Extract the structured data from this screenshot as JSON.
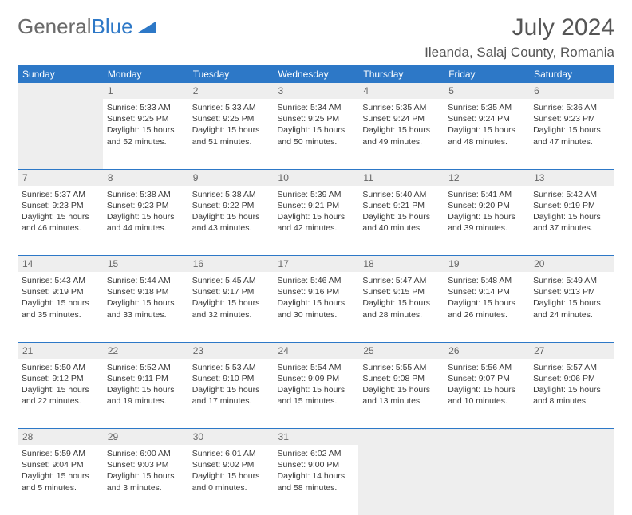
{
  "logo": {
    "text1": "General",
    "text2": "Blue"
  },
  "title": "July 2024",
  "location": "Ileanda, Salaj County, Romania",
  "weekdays": [
    "Sunday",
    "Monday",
    "Tuesday",
    "Wednesday",
    "Thursday",
    "Friday",
    "Saturday"
  ],
  "colors": {
    "header_bg": "#2d78c7",
    "header_text": "#ffffff",
    "border": "#2d78c7",
    "num_bg": "#eeeeee",
    "body_bg": "#ffffff"
  },
  "weeks": [
    {
      "nums": [
        "",
        "1",
        "2",
        "3",
        "4",
        "5",
        "6"
      ],
      "days": [
        null,
        {
          "sunrise": "Sunrise: 5:33 AM",
          "sunset": "Sunset: 9:25 PM",
          "daylight": "Daylight: 15 hours and 52 minutes."
        },
        {
          "sunrise": "Sunrise: 5:33 AM",
          "sunset": "Sunset: 9:25 PM",
          "daylight": "Daylight: 15 hours and 51 minutes."
        },
        {
          "sunrise": "Sunrise: 5:34 AM",
          "sunset": "Sunset: 9:25 PM",
          "daylight": "Daylight: 15 hours and 50 minutes."
        },
        {
          "sunrise": "Sunrise: 5:35 AM",
          "sunset": "Sunset: 9:24 PM",
          "daylight": "Daylight: 15 hours and 49 minutes."
        },
        {
          "sunrise": "Sunrise: 5:35 AM",
          "sunset": "Sunset: 9:24 PM",
          "daylight": "Daylight: 15 hours and 48 minutes."
        },
        {
          "sunrise": "Sunrise: 5:36 AM",
          "sunset": "Sunset: 9:23 PM",
          "daylight": "Daylight: 15 hours and 47 minutes."
        }
      ]
    },
    {
      "nums": [
        "7",
        "8",
        "9",
        "10",
        "11",
        "12",
        "13"
      ],
      "days": [
        {
          "sunrise": "Sunrise: 5:37 AM",
          "sunset": "Sunset: 9:23 PM",
          "daylight": "Daylight: 15 hours and 46 minutes."
        },
        {
          "sunrise": "Sunrise: 5:38 AM",
          "sunset": "Sunset: 9:23 PM",
          "daylight": "Daylight: 15 hours and 44 minutes."
        },
        {
          "sunrise": "Sunrise: 5:38 AM",
          "sunset": "Sunset: 9:22 PM",
          "daylight": "Daylight: 15 hours and 43 minutes."
        },
        {
          "sunrise": "Sunrise: 5:39 AM",
          "sunset": "Sunset: 9:21 PM",
          "daylight": "Daylight: 15 hours and 42 minutes."
        },
        {
          "sunrise": "Sunrise: 5:40 AM",
          "sunset": "Sunset: 9:21 PM",
          "daylight": "Daylight: 15 hours and 40 minutes."
        },
        {
          "sunrise": "Sunrise: 5:41 AM",
          "sunset": "Sunset: 9:20 PM",
          "daylight": "Daylight: 15 hours and 39 minutes."
        },
        {
          "sunrise": "Sunrise: 5:42 AM",
          "sunset": "Sunset: 9:19 PM",
          "daylight": "Daylight: 15 hours and 37 minutes."
        }
      ]
    },
    {
      "nums": [
        "14",
        "15",
        "16",
        "17",
        "18",
        "19",
        "20"
      ],
      "days": [
        {
          "sunrise": "Sunrise: 5:43 AM",
          "sunset": "Sunset: 9:19 PM",
          "daylight": "Daylight: 15 hours and 35 minutes."
        },
        {
          "sunrise": "Sunrise: 5:44 AM",
          "sunset": "Sunset: 9:18 PM",
          "daylight": "Daylight: 15 hours and 33 minutes."
        },
        {
          "sunrise": "Sunrise: 5:45 AM",
          "sunset": "Sunset: 9:17 PM",
          "daylight": "Daylight: 15 hours and 32 minutes."
        },
        {
          "sunrise": "Sunrise: 5:46 AM",
          "sunset": "Sunset: 9:16 PM",
          "daylight": "Daylight: 15 hours and 30 minutes."
        },
        {
          "sunrise": "Sunrise: 5:47 AM",
          "sunset": "Sunset: 9:15 PM",
          "daylight": "Daylight: 15 hours and 28 minutes."
        },
        {
          "sunrise": "Sunrise: 5:48 AM",
          "sunset": "Sunset: 9:14 PM",
          "daylight": "Daylight: 15 hours and 26 minutes."
        },
        {
          "sunrise": "Sunrise: 5:49 AM",
          "sunset": "Sunset: 9:13 PM",
          "daylight": "Daylight: 15 hours and 24 minutes."
        }
      ]
    },
    {
      "nums": [
        "21",
        "22",
        "23",
        "24",
        "25",
        "26",
        "27"
      ],
      "days": [
        {
          "sunrise": "Sunrise: 5:50 AM",
          "sunset": "Sunset: 9:12 PM",
          "daylight": "Daylight: 15 hours and 22 minutes."
        },
        {
          "sunrise": "Sunrise: 5:52 AM",
          "sunset": "Sunset: 9:11 PM",
          "daylight": "Daylight: 15 hours and 19 minutes."
        },
        {
          "sunrise": "Sunrise: 5:53 AM",
          "sunset": "Sunset: 9:10 PM",
          "daylight": "Daylight: 15 hours and 17 minutes."
        },
        {
          "sunrise": "Sunrise: 5:54 AM",
          "sunset": "Sunset: 9:09 PM",
          "daylight": "Daylight: 15 hours and 15 minutes."
        },
        {
          "sunrise": "Sunrise: 5:55 AM",
          "sunset": "Sunset: 9:08 PM",
          "daylight": "Daylight: 15 hours and 13 minutes."
        },
        {
          "sunrise": "Sunrise: 5:56 AM",
          "sunset": "Sunset: 9:07 PM",
          "daylight": "Daylight: 15 hours and 10 minutes."
        },
        {
          "sunrise": "Sunrise: 5:57 AM",
          "sunset": "Sunset: 9:06 PM",
          "daylight": "Daylight: 15 hours and 8 minutes."
        }
      ]
    },
    {
      "nums": [
        "28",
        "29",
        "30",
        "31",
        "",
        "",
        ""
      ],
      "days": [
        {
          "sunrise": "Sunrise: 5:59 AM",
          "sunset": "Sunset: 9:04 PM",
          "daylight": "Daylight: 15 hours and 5 minutes."
        },
        {
          "sunrise": "Sunrise: 6:00 AM",
          "sunset": "Sunset: 9:03 PM",
          "daylight": "Daylight: 15 hours and 3 minutes."
        },
        {
          "sunrise": "Sunrise: 6:01 AM",
          "sunset": "Sunset: 9:02 PM",
          "daylight": "Daylight: 15 hours and 0 minutes."
        },
        {
          "sunrise": "Sunrise: 6:02 AM",
          "sunset": "Sunset: 9:00 PM",
          "daylight": "Daylight: 14 hours and 58 minutes."
        },
        null,
        null,
        null
      ]
    }
  ]
}
